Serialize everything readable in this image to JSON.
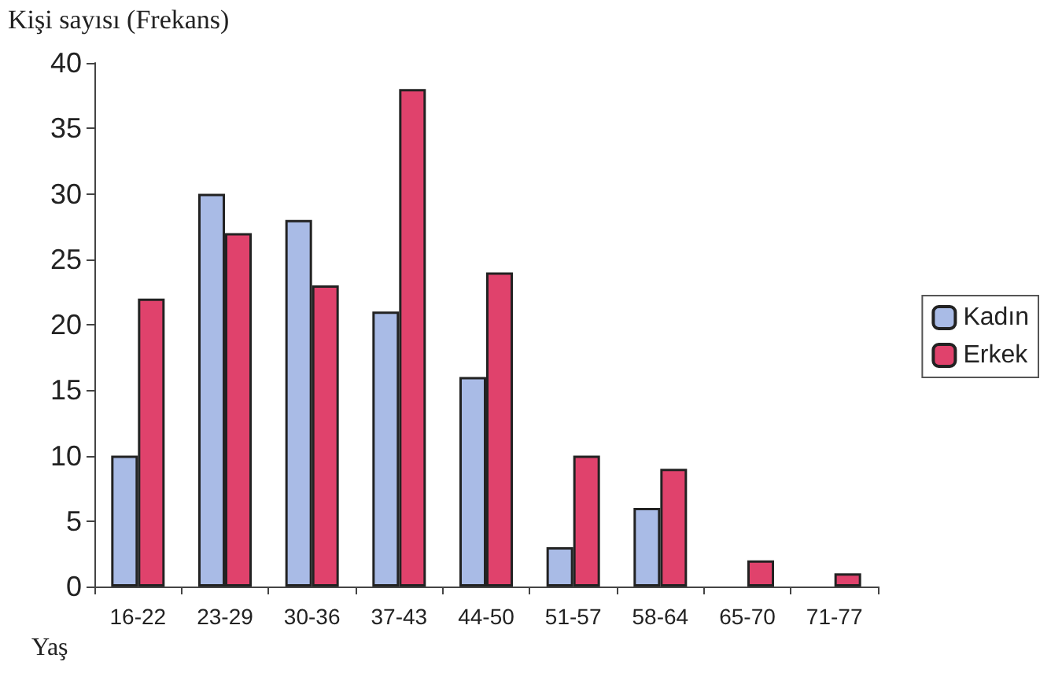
{
  "chart_data": {
    "type": "bar",
    "ylabel": "Kişi sayısı (Frekans)",
    "xlabel": "Yaş",
    "categories": [
      "16-22",
      "23-29",
      "30-36",
      "37-43",
      "44-50",
      "51-57",
      "58-64",
      "65-70",
      "71-77"
    ],
    "series": [
      {
        "name": "Kadın",
        "color": "#a9bbe6",
        "values": [
          10,
          30,
          28,
          21,
          16,
          3,
          6,
          null,
          null
        ]
      },
      {
        "name": "Erkek",
        "color": "#e0426c",
        "values": [
          22,
          27,
          23,
          38,
          24,
          10,
          9,
          2,
          1
        ]
      }
    ],
    "ylim": [
      0,
      40
    ],
    "yticks": [
      0,
      5,
      10,
      15,
      20,
      25,
      30,
      35,
      40
    ],
    "grid": false,
    "legend": "right"
  }
}
